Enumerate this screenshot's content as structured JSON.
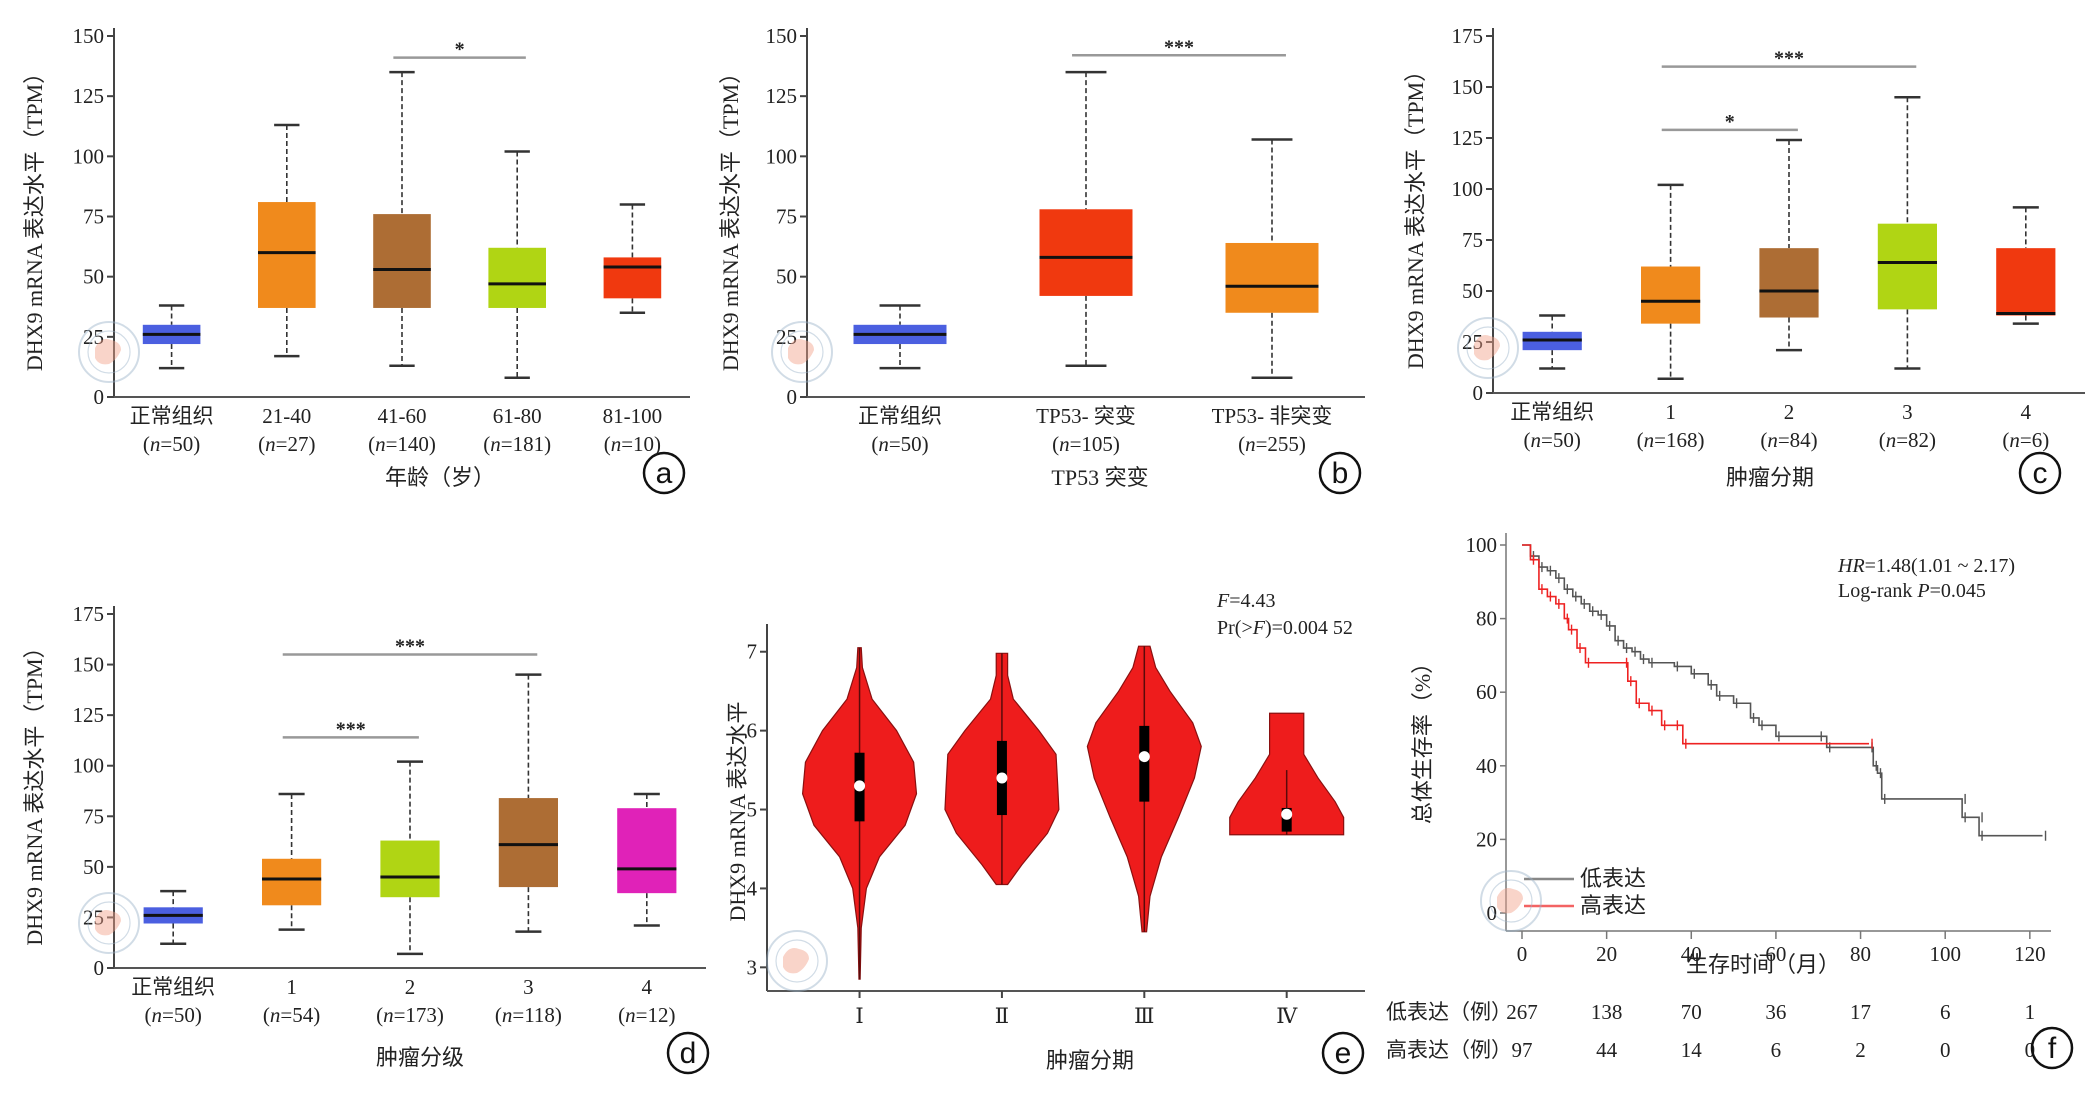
{
  "figure": {
    "watermark": "Chinese Medical Association seal"
  },
  "chart_data": [
    {
      "panel": "a",
      "type": "box",
      "ylabel": "DHX9 mRNA 表达水平（TPM）",
      "xlabel": "年龄（岁）",
      "ylim": [
        0,
        150
      ],
      "yticks": [
        0,
        25,
        50,
        75,
        100,
        125,
        150
      ],
      "categories": [
        {
          "label": "正常组织",
          "n": "(n=50)",
          "color": "#4b5fe0",
          "min": 12,
          "q1": 22,
          "median": 26,
          "q3": 30,
          "max": 38
        },
        {
          "label": "21-40",
          "n": "(n=27)",
          "color": "#f08a1c",
          "min": 17,
          "q1": 37,
          "median": 60,
          "q3": 81,
          "max": 113
        },
        {
          "label": "41-60",
          "n": "(n=140)",
          "color": "#ad6d34",
          "min": 13,
          "q1": 37,
          "median": 53,
          "q3": 76,
          "max": 135
        },
        {
          "label": "61-80",
          "n": "(n=181)",
          "color": "#b0d514",
          "min": 8,
          "q1": 37,
          "median": 47,
          "q3": 62,
          "max": 102
        },
        {
          "label": "81-100",
          "n": "(n=10)",
          "color": "#f0390f",
          "min": 35,
          "q1": 41,
          "median": 54,
          "q3": 58,
          "max": 80
        }
      ],
      "significance": [
        {
          "from": 2,
          "to": 3,
          "y": 141,
          "label": "*"
        }
      ]
    },
    {
      "panel": "b",
      "type": "box",
      "ylabel": "DHX9 mRNA 表达水平（TPM）",
      "xlabel": "TP53 突变",
      "ylim": [
        0,
        150
      ],
      "yticks": [
        0,
        25,
        50,
        75,
        100,
        125,
        150
      ],
      "categories": [
        {
          "label": "正常组织",
          "n": "(n=50)",
          "color": "#4b5fe0",
          "min": 12,
          "q1": 22,
          "median": 26,
          "q3": 30,
          "max": 38
        },
        {
          "label": "TP53- 突变",
          "n": "(n=105)",
          "color": "#f0390f",
          "min": 13,
          "q1": 42,
          "median": 58,
          "q3": 78,
          "max": 135
        },
        {
          "label": "TP53- 非突变",
          "n": "(n=255)",
          "color": "#f08a1c",
          "min": 8,
          "q1": 35,
          "median": 46,
          "q3": 64,
          "max": 107
        }
      ],
      "significance": [
        {
          "from": 1,
          "to": 2,
          "y": 142,
          "label": "***"
        }
      ]
    },
    {
      "panel": "c",
      "type": "box",
      "ylabel": "DHX9 mRNA 表达水平（TPM）",
      "xlabel": "肿瘤分期",
      "ylim": [
        0,
        175
      ],
      "yticks": [
        0,
        25,
        50,
        75,
        100,
        125,
        150,
        175
      ],
      "categories": [
        {
          "label": "正常组织",
          "n": "(n=50)",
          "color": "#4b5fe0",
          "min": 12,
          "q1": 21,
          "median": 26,
          "q3": 30,
          "max": 38
        },
        {
          "label": "1",
          "n": "(n=168)",
          "color": "#f08a1c",
          "min": 7,
          "q1": 34,
          "median": 45,
          "q3": 62,
          "max": 102
        },
        {
          "label": "2",
          "n": "(n=84)",
          "color": "#ad6d34",
          "min": 21,
          "q1": 37,
          "median": 50,
          "q3": 71,
          "max": 124
        },
        {
          "label": "3",
          "n": "(n=82)",
          "color": "#b0d514",
          "min": 12,
          "q1": 41,
          "median": 64,
          "q3": 83,
          "max": 145
        },
        {
          "label": "4",
          "n": "(n=6)",
          "color": "#f0390f",
          "min": 34,
          "q1": 38,
          "median": 39,
          "q3": 71,
          "max": 91
        }
      ],
      "significance": [
        {
          "from": 1,
          "to": 3,
          "y": 160,
          "label": "***"
        },
        {
          "from": 1,
          "to": 2,
          "y": 129,
          "label": "*"
        }
      ]
    },
    {
      "panel": "d",
      "type": "box",
      "ylabel": "DHX9 mRNA 表达水平（TPM）",
      "xlabel": "肿瘤分级",
      "ylim": [
        0,
        175
      ],
      "yticks": [
        0,
        25,
        50,
        75,
        100,
        125,
        150,
        175
      ],
      "categories": [
        {
          "label": "正常组织",
          "n": "(n=50)",
          "color": "#4b5fe0",
          "min": 12,
          "q1": 22,
          "median": 26,
          "q3": 30,
          "max": 38
        },
        {
          "label": "1",
          "n": "(n=54)",
          "color": "#f08a1c",
          "min": 19,
          "q1": 31,
          "median": 44,
          "q3": 54,
          "max": 86
        },
        {
          "label": "2",
          "n": "(n=173)",
          "color": "#b0d514",
          "min": 7,
          "q1": 35,
          "median": 45,
          "q3": 63,
          "max": 102
        },
        {
          "label": "3",
          "n": "(n=118)",
          "color": "#ad6d34",
          "min": 18,
          "q1": 40,
          "median": 61,
          "q3": 84,
          "max": 145
        },
        {
          "label": "4",
          "n": "(n=12)",
          "color": "#e022b8",
          "min": 21,
          "q1": 37,
          "median": 49,
          "q3": 79,
          "max": 86
        }
      ],
      "significance": [
        {
          "from": 1,
          "to": 3,
          "y": 155,
          "label": "***"
        },
        {
          "from": 1,
          "to": 2,
          "y": 114,
          "label": "***"
        }
      ]
    },
    {
      "panel": "e",
      "type": "violin",
      "ylabel": "DHX9 mRNA 表达水平",
      "xlabel": "肿瘤分期",
      "ylim": [
        2.7,
        7.25
      ],
      "yticks": [
        3,
        4,
        5,
        6,
        7
      ],
      "color": "#ee1c1c",
      "annotation": [
        "F=4.43",
        "Pr(>F)=0.004 52"
      ],
      "categories": [
        {
          "label": "Ⅰ",
          "min": 2.85,
          "max": 7.05,
          "q1": 4.85,
          "median": 5.3,
          "q3": 5.72,
          "profile": [
            [
              2.85,
              0.01
            ],
            [
              3.5,
              0.03
            ],
            [
              4.0,
              0.12
            ],
            [
              4.4,
              0.35
            ],
            [
              4.8,
              0.8
            ],
            [
              5.2,
              1.0
            ],
            [
              5.6,
              0.95
            ],
            [
              6.0,
              0.65
            ],
            [
              6.4,
              0.22
            ],
            [
              6.8,
              0.05
            ],
            [
              7.05,
              0.03
            ]
          ]
        },
        {
          "label": "Ⅱ",
          "min": 4.05,
          "max": 6.98,
          "q1": 4.93,
          "median": 5.4,
          "q3": 5.87,
          "profile": [
            [
              4.05,
              0.1
            ],
            [
              4.3,
              0.35
            ],
            [
              4.7,
              0.8
            ],
            [
              5.0,
              1.0
            ],
            [
              5.3,
              0.98
            ],
            [
              5.7,
              0.95
            ],
            [
              6.0,
              0.65
            ],
            [
              6.4,
              0.2
            ],
            [
              6.7,
              0.1
            ],
            [
              6.98,
              0.1
            ]
          ]
        },
        {
          "label": "Ⅲ",
          "min": 3.45,
          "max": 7.07,
          "q1": 5.1,
          "median": 5.67,
          "q3": 6.06,
          "profile": [
            [
              3.45,
              0.04
            ],
            [
              3.9,
              0.1
            ],
            [
              4.4,
              0.3
            ],
            [
              4.9,
              0.6
            ],
            [
              5.4,
              0.88
            ],
            [
              5.8,
              1.0
            ],
            [
              6.1,
              0.85
            ],
            [
              6.5,
              0.45
            ],
            [
              6.8,
              0.2
            ],
            [
              7.07,
              0.1
            ]
          ]
        },
        {
          "label": "Ⅳ",
          "min": 4.68,
          "max": 6.22,
          "q1": 4.72,
          "median": 4.94,
          "q3": 5.02,
          "whisker_max": 5.5,
          "profile": [
            [
              4.68,
              1.0
            ],
            [
              4.9,
              1.0
            ],
            [
              5.1,
              0.85
            ],
            [
              5.4,
              0.55
            ],
            [
              5.7,
              0.3
            ],
            [
              6.0,
              0.3
            ],
            [
              6.22,
              0.3
            ]
          ]
        }
      ]
    },
    {
      "panel": "f",
      "type": "line",
      "subtype": "kaplan-meier",
      "ylabel": "总体生存率（%）",
      "xlabel": "生存时间（月）",
      "xlim": [
        0,
        125
      ],
      "ylim": [
        0,
        100
      ],
      "xticks": [
        0,
        20,
        40,
        60,
        80,
        100,
        120
      ],
      "yticks": [
        0,
        20,
        40,
        60,
        80,
        100
      ],
      "annotation": [
        "HR=1.48(1.01 ~ 2.17)",
        "Log-rank P=0.045"
      ],
      "legend": {
        "position": "bottom-left",
        "entries": [
          "低表达",
          "高表达"
        ]
      },
      "series": [
        {
          "name": "低表达",
          "color": "#555555",
          "points": [
            [
              0,
              100
            ],
            [
              2,
              97
            ],
            [
              4,
              94
            ],
            [
              6,
              93
            ],
            [
              8,
              91
            ],
            [
              10,
              88
            ],
            [
              12,
              86
            ],
            [
              14,
              84
            ],
            [
              16,
              82
            ],
            [
              18,
              81
            ],
            [
              20,
              78
            ],
            [
              22,
              74
            ],
            [
              24,
              72
            ],
            [
              26,
              71
            ],
            [
              28,
              69
            ],
            [
              30,
              68
            ],
            [
              36,
              67
            ],
            [
              40,
              65
            ],
            [
              44,
              62
            ],
            [
              46,
              59
            ],
            [
              50,
              57
            ],
            [
              54,
              53
            ],
            [
              56,
              51
            ],
            [
              60,
              48
            ],
            [
              70,
              48
            ],
            [
              72,
              45
            ],
            [
              82,
              45
            ],
            [
              83,
              40
            ],
            [
              84,
              38
            ],
            [
              85,
              31
            ],
            [
              104,
              31
            ],
            [
              104,
              26
            ],
            [
              108,
              26
            ],
            [
              108,
              21
            ],
            [
              123,
              21
            ]
          ]
        },
        {
          "name": "高表达",
          "color": "#ee2222",
          "points": [
            [
              0,
              100
            ],
            [
              2,
              96
            ],
            [
              4,
              88
            ],
            [
              6,
              86
            ],
            [
              8,
              84
            ],
            [
              10,
              80
            ],
            [
              11,
              77
            ],
            [
              13,
              72
            ],
            [
              15,
              68
            ],
            [
              24,
              68
            ],
            [
              25,
              63
            ],
            [
              27,
              57
            ],
            [
              30,
              55
            ],
            [
              33,
              51
            ],
            [
              36,
              51
            ],
            [
              38,
              46
            ],
            [
              82,
              46
            ]
          ]
        }
      ],
      "risk_table": {
        "rows": [
          {
            "label": "低表达（例）",
            "values": [
              "267",
              "138",
              "70",
              "36",
              "17",
              "6",
              "1"
            ]
          },
          {
            "label": "高表达（例）",
            "values": [
              "97",
              "44",
              "14",
              "6",
              "2",
              "0",
              "0"
            ]
          }
        ]
      }
    }
  ]
}
